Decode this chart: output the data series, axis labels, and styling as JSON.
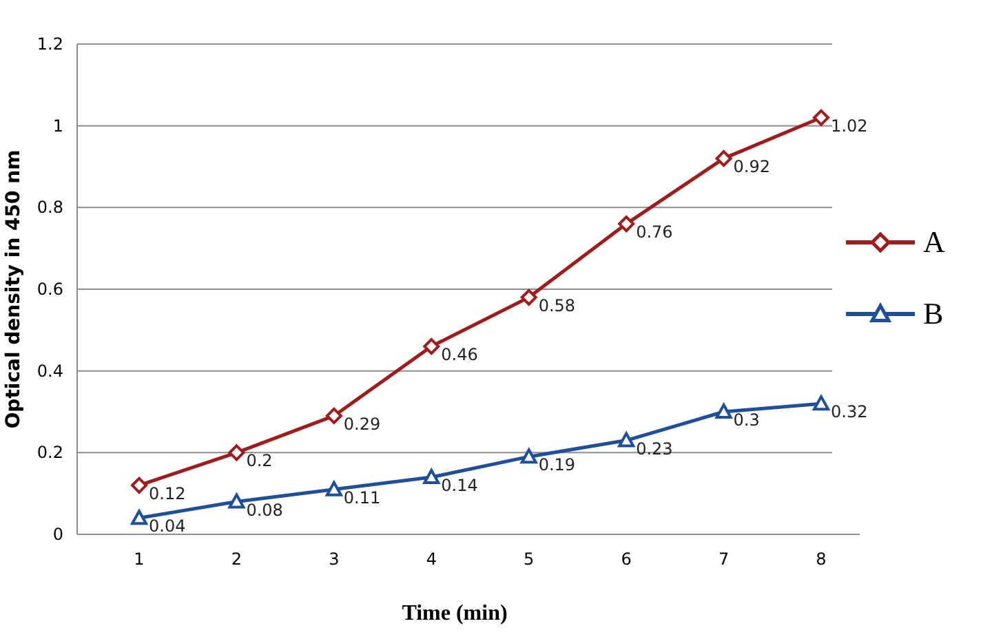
{
  "chart_data": {
    "type": "line",
    "xlabel": "Time (min)",
    "ylabel": "Optical density in 450 nm",
    "categories": [
      "1",
      "2",
      "3",
      "4",
      "5",
      "6",
      "7",
      "8"
    ],
    "series": [
      {
        "name": "A",
        "color": "#a01c1c",
        "marker": "diamond",
        "values": [
          0.12,
          0.2,
          0.29,
          0.46,
          0.58,
          0.76,
          0.92,
          1.02
        ]
      },
      {
        "name": "B",
        "color": "#1f4e9a",
        "marker": "triangle",
        "values": [
          0.04,
          0.08,
          0.11,
          0.14,
          0.19,
          0.23,
          0.3,
          0.32
        ]
      }
    ],
    "ylim": [
      0,
      1.2
    ],
    "yticks": [
      0,
      0.2,
      0.4,
      0.6,
      0.8,
      1,
      1.2
    ],
    "grid": "y",
    "legend": "right",
    "data_labels": true
  }
}
